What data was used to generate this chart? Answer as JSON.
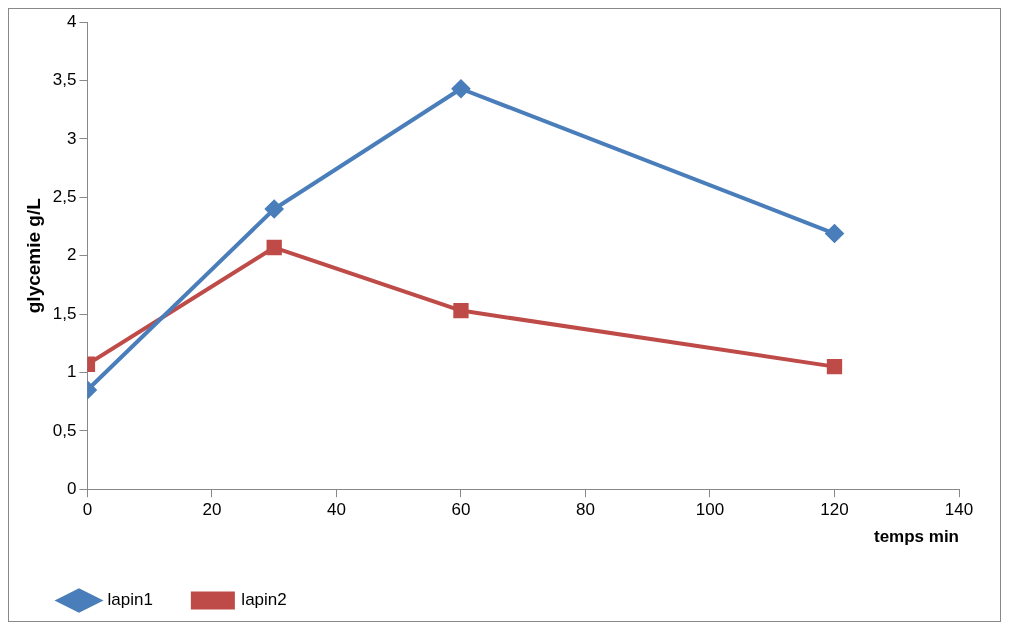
{
  "chart_data": {
    "type": "line",
    "xlabel": "temps min",
    "ylabel": "glycemie g/L",
    "x": [
      0,
      30,
      60,
      120
    ],
    "series": [
      {
        "name": "lapin1",
        "color": "#4a7ebb",
        "values": [
          0.85,
          2.4,
          3.43,
          2.19
        ],
        "marker": "diamond"
      },
      {
        "name": "lapin2",
        "color": "#be4b48",
        "values": [
          1.07,
          2.07,
          1.53,
          1.05
        ],
        "marker": "square"
      }
    ],
    "xlim": [
      0,
      140
    ],
    "xticks": [
      0,
      20,
      40,
      60,
      80,
      100,
      120,
      140
    ],
    "ylim": [
      0,
      4
    ],
    "yticks": [
      0,
      {
        "value": 0.5,
        "label": "0,5"
      },
      1,
      {
        "value": 1.5,
        "label": "1,5"
      },
      2,
      {
        "value": 2.5,
        "label": "2,5"
      },
      3,
      {
        "value": 3.5,
        "label": "3,5"
      },
      4
    ],
    "grid": false,
    "legend": "bottom",
    "line_style": "solid"
  }
}
